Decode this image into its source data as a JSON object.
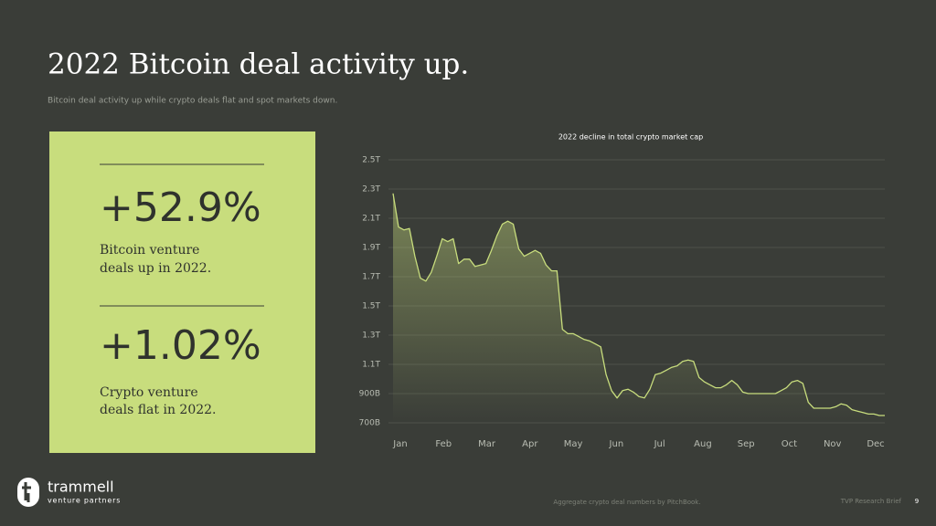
{
  "header": {
    "title": "2022 Bitcoin deal activity up.",
    "subtitle": "Bitcoin deal activity up while crypto deals flat and spot markets down."
  },
  "stats": [
    {
      "value": "+52.9%",
      "label_lines": [
        "Bitcoin venture",
        "deals up in 2022."
      ]
    },
    {
      "value": "+1.02%",
      "label_lines": [
        "Crypto venture",
        "deals flat in 2022."
      ]
    }
  ],
  "chart_data": {
    "type": "area",
    "title": "2022 decline in total crypto market cap",
    "xtick_labels": [
      "Jan",
      "Feb",
      "Mar",
      "Apr",
      "May",
      "Jun",
      "Jul",
      "Aug",
      "Sep",
      "Oct",
      "Nov",
      "Dec"
    ],
    "values": [
      2.27,
      2.04,
      2.02,
      2.03,
      1.84,
      1.69,
      1.67,
      1.73,
      1.84,
      1.96,
      1.94,
      1.96,
      1.79,
      1.82,
      1.82,
      1.77,
      1.78,
      1.79,
      1.88,
      1.98,
      2.06,
      2.08,
      2.06,
      1.89,
      1.84,
      1.86,
      1.88,
      1.86,
      1.78,
      1.74,
      1.74,
      1.34,
      1.31,
      1.31,
      1.29,
      1.27,
      1.26,
      1.24,
      1.22,
      1.03,
      0.92,
      0.87,
      0.92,
      0.93,
      0.91,
      0.88,
      0.87,
      0.93,
      1.03,
      1.04,
      1.06,
      1.08,
      1.09,
      1.12,
      1.13,
      1.12,
      1.01,
      0.98,
      0.96,
      0.94,
      0.94,
      0.96,
      0.99,
      0.96,
      0.91,
      0.9,
      0.9,
      0.9,
      0.9,
      0.9,
      0.9,
      0.92,
      0.94,
      0.98,
      0.99,
      0.97,
      0.84,
      0.8,
      0.8,
      0.8,
      0.8,
      0.81,
      0.83,
      0.82,
      0.79,
      0.78,
      0.77,
      0.76,
      0.76,
      0.75,
      0.75
    ],
    "color": "#c8dd7d",
    "ylim": [
      0.7,
      2.5
    ],
    "yticks": [
      {
        "value": 0.7,
        "label": "700B"
      },
      {
        "value": 0.9,
        "label": "900B"
      },
      {
        "value": 1.1,
        "label": "1.1T"
      },
      {
        "value": 1.3,
        "label": "1.3T"
      },
      {
        "value": 1.5,
        "label": "1.5T"
      },
      {
        "value": 1.7,
        "label": "1.7T"
      },
      {
        "value": 1.9,
        "label": "1.9T"
      },
      {
        "value": 2.1,
        "label": "2.1T"
      },
      {
        "value": 2.3,
        "label": "2.3T"
      },
      {
        "value": 2.5,
        "label": "2.5T"
      }
    ],
    "grid": true
  },
  "logo": {
    "name": "trammell",
    "tagline": "venture partners"
  },
  "footer": {
    "source": "Aggregate crypto deal numbers by PitchBook.",
    "doc": "TVP Research Brief",
    "page": 9
  }
}
